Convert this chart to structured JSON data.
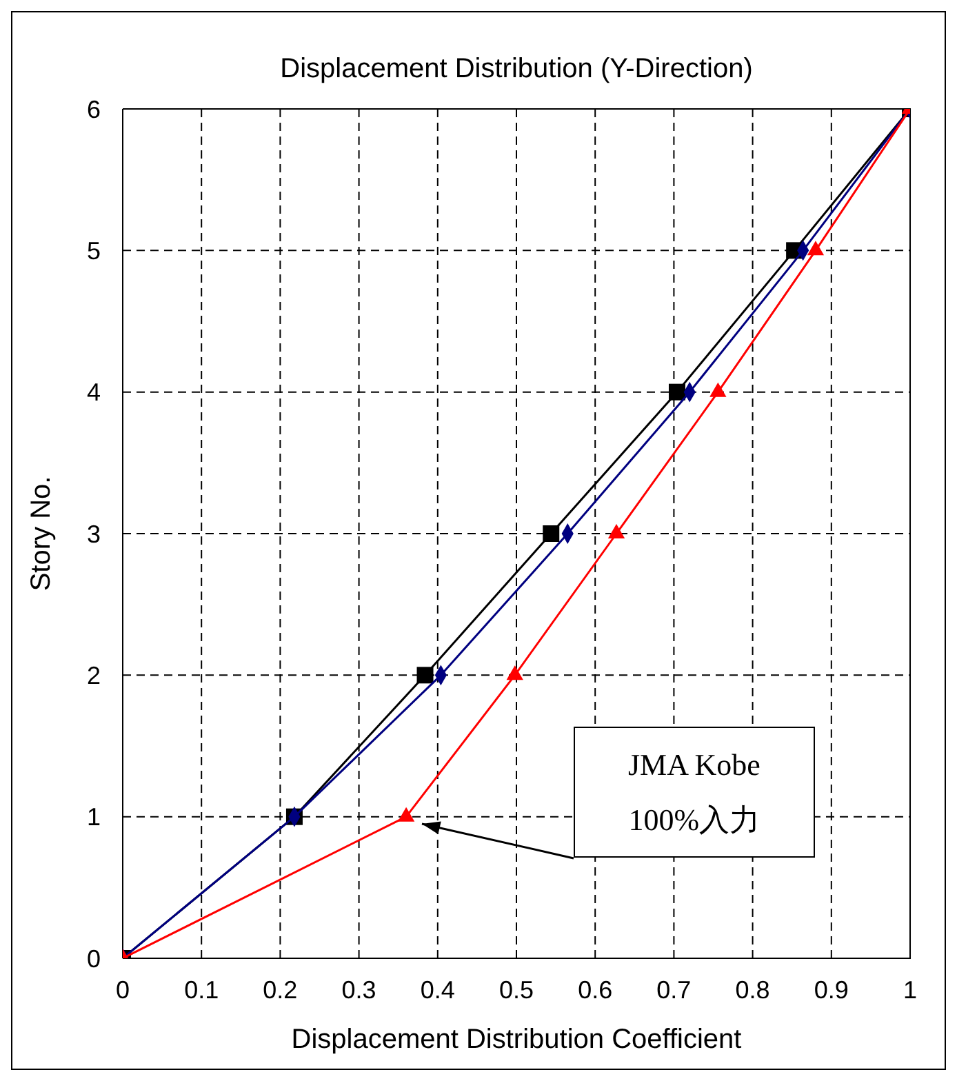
{
  "chart_data": {
    "type": "line",
    "title": "Displacement Distribution (Y-Direction)",
    "xlabel": "Displacement Distribution Coefficient",
    "ylabel": "Story No.",
    "series": [
      {
        "color": "#000000",
        "marker": "square",
        "x": [
          0,
          0.218,
          0.384,
          0.544,
          0.704,
          0.853,
          1
        ],
        "values": [
          0,
          1,
          2,
          3,
          4,
          5,
          6
        ]
      },
      {
        "color": "#000080",
        "marker": "diamond",
        "x": [
          0,
          0.218,
          0.404,
          0.565,
          0.72,
          0.864,
          1
        ],
        "values": [
          0,
          1,
          2,
          3,
          4,
          5,
          6
        ]
      },
      {
        "color": "#ff0000",
        "marker": "triangle",
        "x": [
          0,
          0.36,
          0.498,
          0.627,
          0.756,
          0.88,
          1
        ],
        "values": [
          0,
          1,
          2,
          3,
          4,
          5,
          6
        ]
      }
    ],
    "xlim": [
      0,
      1
    ],
    "xticks": [
      0,
      0.1,
      0.2,
      0.3,
      0.4,
      0.5,
      0.6,
      0.7,
      0.8,
      0.9,
      1
    ],
    "ylim": [
      0,
      6
    ],
    "yticks": [
      0,
      1,
      2,
      3,
      4,
      5,
      6
    ],
    "grid": true,
    "annotations": [
      "JMA Kobe\n100%入力"
    ]
  }
}
